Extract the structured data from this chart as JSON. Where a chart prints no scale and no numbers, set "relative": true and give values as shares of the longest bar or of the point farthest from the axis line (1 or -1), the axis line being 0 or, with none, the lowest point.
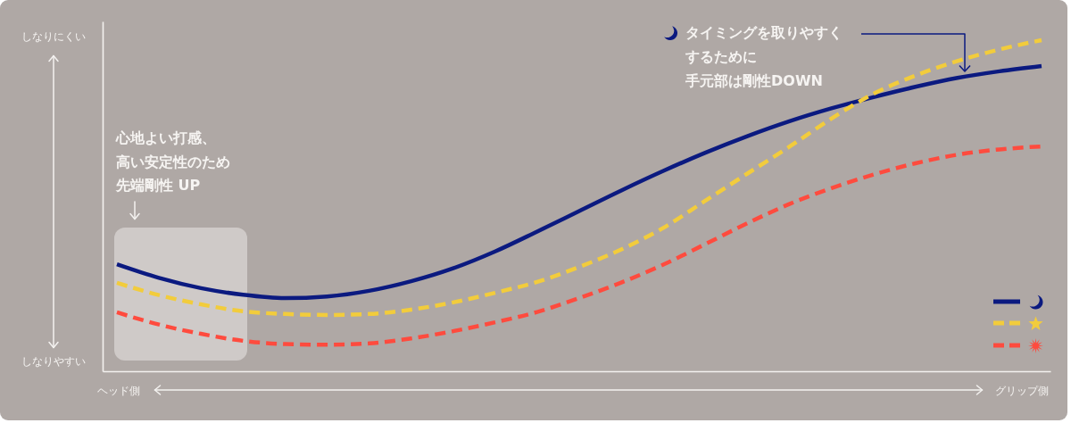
{
  "chart_data": {
    "type": "line",
    "relative": true,
    "categories": [
      null,
      null,
      null,
      null,
      null,
      null,
      null,
      null,
      null,
      null,
      null,
      null,
      null,
      null,
      null,
      null,
      null,
      null,
      null,
      null,
      null,
      null,
      null
    ],
    "series": [
      {
        "color": "#0b1a80",
        "line_style": "solid",
        "values": [
          0.323,
          0.282,
          0.251,
          0.231,
          0.221,
          0.226,
          0.243,
          0.272,
          0.311,
          0.362,
          0.422,
          0.484,
          0.546,
          0.605,
          0.66,
          0.71,
          0.755,
          0.794,
          0.828,
          0.859,
          0.886,
          0.906,
          0.922
        ]
      },
      {
        "color": "#f2cc3c",
        "line_style": "dashed",
        "values": [
          0.267,
          0.23,
          0.202,
          0.181,
          0.173,
          0.17,
          0.173,
          0.186,
          0.208,
          0.237,
          0.27,
          0.315,
          0.368,
          0.433,
          0.515,
          0.597,
          0.678,
          0.763,
          0.838,
          0.893,
          0.937,
          0.972,
          1.0
        ]
      },
      {
        "color": "#ff4b3e",
        "line_style": "dashed",
        "values": [
          0.178,
          0.141,
          0.113,
          0.092,
          0.082,
          0.08,
          0.084,
          0.099,
          0.121,
          0.148,
          0.179,
          0.221,
          0.268,
          0.322,
          0.384,
          0.447,
          0.505,
          0.553,
          0.594,
          0.628,
          0.654,
          0.67,
          0.679
        ]
      }
    ],
    "annotations": [
      "しなりにくい",
      "しなりやすい",
      "ヘッド側",
      "グリップ側",
      "心地よい打感、",
      "高い安定性のため",
      "先端剛性 UP",
      "タイミングを取りやすく",
      "するために",
      "手元部は剛性DOWN"
    ]
  }
}
